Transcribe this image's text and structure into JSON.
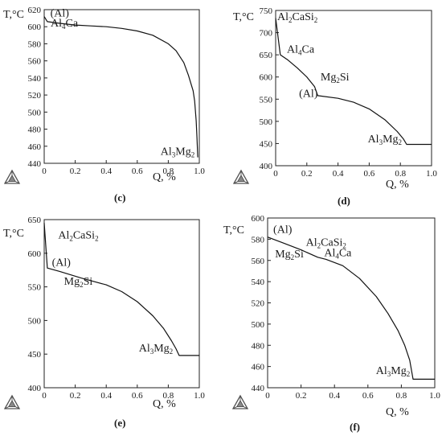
{
  "chart_data": [
    {
      "panel": "(c)",
      "type": "line",
      "xlabel": "Q, %",
      "ylabel": "T,°C",
      "xlim": [
        0,
        1.0
      ],
      "ylim": [
        440,
        620
      ],
      "xticks": [
        "0",
        "0.2",
        "0.4",
        "0.6",
        "0.8",
        "1.0"
      ],
      "yticks": [
        "440",
        "460",
        "480",
        "500",
        "520",
        "540",
        "560",
        "580",
        "600",
        "620"
      ],
      "grid": false,
      "series": [
        {
          "x": [
            0.0,
            0.02,
            0.1,
            0.2,
            0.3,
            0.4,
            0.5,
            0.6,
            0.7,
            0.8,
            0.85,
            0.9,
            0.93,
            0.96,
            0.97,
            0.98,
            0.985,
            0.99,
            0.99
          ],
          "y": [
            612,
            606,
            604,
            602,
            601,
            600,
            598,
            595,
            590,
            580,
            572,
            558,
            543,
            525,
            513,
            490,
            470,
            447,
            447
          ]
        }
      ],
      "annotations": [
        {
          "text": "(Al)",
          "x": 0.1,
          "y": 612
        },
        {
          "text": "Al₄Ca",
          "x": 0.13,
          "y": 600
        },
        {
          "text": "Al₃Mg₂",
          "x": 0.86,
          "y": 450
        }
      ]
    },
    {
      "panel": "(d)",
      "type": "line",
      "xlabel": "Q, %",
      "ylabel": "T,°C",
      "xlim": [
        0,
        1.0
      ],
      "ylim": [
        400,
        750
      ],
      "xticks": [
        "0",
        "0.2",
        "0.4",
        "0.6",
        "0.8",
        "1.0"
      ],
      "yticks": [
        "400",
        "450",
        "500",
        "550",
        "600",
        "650",
        "700",
        "750"
      ],
      "grid": false,
      "series": [
        {
          "x": [
            0.0,
            0.03,
            0.08,
            0.14,
            0.2,
            0.25,
            0.27,
            0.4,
            0.5,
            0.6,
            0.7,
            0.78,
            0.82,
            0.84,
            0.84,
            1.0
          ],
          "y": [
            733,
            650,
            638,
            620,
            600,
            578,
            558,
            552,
            543,
            528,
            504,
            477,
            460,
            448,
            448,
            448
          ]
        }
      ],
      "annotations": [
        {
          "text": "Al₂CaSi₂",
          "x": 0.14,
          "y": 728
        },
        {
          "text": "Al₄Ca",
          "x": 0.16,
          "y": 655
        },
        {
          "text": "Mg₂Si",
          "x": 0.38,
          "y": 592
        },
        {
          "text": "(Al)",
          "x": 0.21,
          "y": 555
        },
        {
          "text": "Al₃Mg₂",
          "x": 0.7,
          "y": 453
        }
      ]
    },
    {
      "panel": "(e)",
      "type": "line",
      "xlabel": "Q, %",
      "ylabel": "T,°C",
      "xlim": [
        0,
        1.0
      ],
      "ylim": [
        400,
        650
      ],
      "xticks": [
        "0",
        "0.2",
        "0.4",
        "0.6",
        "0.8",
        "1.0"
      ],
      "yticks": [
        "400",
        "450",
        "500",
        "550",
        "600",
        "650"
      ],
      "grid": false,
      "series": [
        {
          "x": [
            0.0,
            0.02,
            0.1,
            0.24,
            0.4,
            0.5,
            0.6,
            0.7,
            0.77,
            0.82,
            0.85,
            0.87,
            0.87,
            1.0
          ],
          "y": [
            645,
            578,
            573,
            563,
            553,
            543,
            528,
            507,
            488,
            470,
            458,
            448,
            448,
            448
          ]
        }
      ],
      "annotations": [
        {
          "text": "Al₂CaSi₂",
          "x": 0.22,
          "y": 622
        },
        {
          "text": "(Al)",
          "x": 0.11,
          "y": 581
        },
        {
          "text": "Mg₂Si",
          "x": 0.22,
          "y": 553
        },
        {
          "text": "Al₃Mg₂",
          "x": 0.72,
          "y": 454
        }
      ]
    },
    {
      "panel": "(f)",
      "type": "line",
      "xlabel": "Q, %",
      "ylabel": "T,°C",
      "xlim": [
        0,
        1.0
      ],
      "ylim": [
        440,
        600
      ],
      "xticks": [
        "0",
        "0.2",
        "0.4",
        "0.6",
        "0.8",
        "1.0"
      ],
      "yticks": [
        "440",
        "460",
        "480",
        "500",
        "520",
        "540",
        "560",
        "580",
        "600"
      ],
      "grid": false,
      "series": [
        {
          "x": [
            0.0,
            0.1,
            0.2,
            0.3,
            0.35,
            0.45,
            0.55,
            0.65,
            0.72,
            0.78,
            0.82,
            0.85,
            0.87,
            0.87,
            1.0
          ],
          "y": [
            582,
            576,
            570,
            563,
            561,
            555,
            543,
            526,
            510,
            494,
            480,
            466,
            448,
            448,
            448
          ]
        }
      ],
      "annotations": [
        {
          "text": "(Al)",
          "x": 0.09,
          "y": 586
        },
        {
          "text": "Al₂CaSi₂",
          "x": 0.35,
          "y": 574
        },
        {
          "text": "Mg₂Si",
          "x": 0.13,
          "y": 563
        },
        {
          "text": "Al₄Ca",
          "x": 0.42,
          "y": 564
        },
        {
          "text": "Al₃Mg₂",
          "x": 0.75,
          "y": 453
        }
      ]
    }
  ]
}
